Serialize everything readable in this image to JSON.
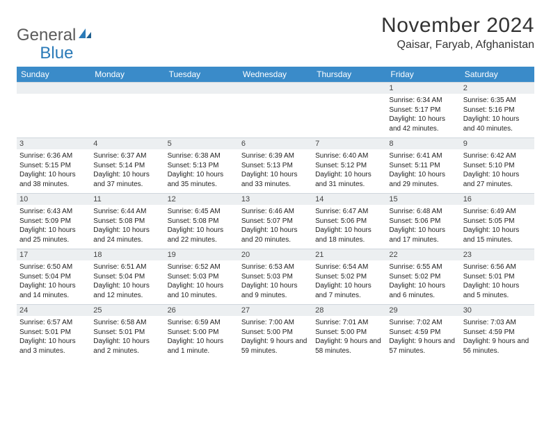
{
  "logo": {
    "word1": "General",
    "word2": "Blue"
  },
  "title": "November 2024",
  "location": "Qaisar, Faryab, Afghanistan",
  "colors": {
    "header_bg": "#3a8bc9",
    "header_text": "#ffffff",
    "daynum_bg": "#eceff1",
    "border": "#cfd6dc",
    "logo_gray": "#5a5a5a",
    "logo_blue": "#2a7ab8"
  },
  "weekdays": [
    "Sunday",
    "Monday",
    "Tuesday",
    "Wednesday",
    "Thursday",
    "Friday",
    "Saturday"
  ],
  "weeks": [
    [
      null,
      null,
      null,
      null,
      null,
      {
        "n": "1",
        "sr": "Sunrise: 6:34 AM",
        "ss": "Sunset: 5:17 PM",
        "dl": "Daylight: 10 hours and 42 minutes."
      },
      {
        "n": "2",
        "sr": "Sunrise: 6:35 AM",
        "ss": "Sunset: 5:16 PM",
        "dl": "Daylight: 10 hours and 40 minutes."
      }
    ],
    [
      {
        "n": "3",
        "sr": "Sunrise: 6:36 AM",
        "ss": "Sunset: 5:15 PM",
        "dl": "Daylight: 10 hours and 38 minutes."
      },
      {
        "n": "4",
        "sr": "Sunrise: 6:37 AM",
        "ss": "Sunset: 5:14 PM",
        "dl": "Daylight: 10 hours and 37 minutes."
      },
      {
        "n": "5",
        "sr": "Sunrise: 6:38 AM",
        "ss": "Sunset: 5:13 PM",
        "dl": "Daylight: 10 hours and 35 minutes."
      },
      {
        "n": "6",
        "sr": "Sunrise: 6:39 AM",
        "ss": "Sunset: 5:13 PM",
        "dl": "Daylight: 10 hours and 33 minutes."
      },
      {
        "n": "7",
        "sr": "Sunrise: 6:40 AM",
        "ss": "Sunset: 5:12 PM",
        "dl": "Daylight: 10 hours and 31 minutes."
      },
      {
        "n": "8",
        "sr": "Sunrise: 6:41 AM",
        "ss": "Sunset: 5:11 PM",
        "dl": "Daylight: 10 hours and 29 minutes."
      },
      {
        "n": "9",
        "sr": "Sunrise: 6:42 AM",
        "ss": "Sunset: 5:10 PM",
        "dl": "Daylight: 10 hours and 27 minutes."
      }
    ],
    [
      {
        "n": "10",
        "sr": "Sunrise: 6:43 AM",
        "ss": "Sunset: 5:09 PM",
        "dl": "Daylight: 10 hours and 25 minutes."
      },
      {
        "n": "11",
        "sr": "Sunrise: 6:44 AM",
        "ss": "Sunset: 5:08 PM",
        "dl": "Daylight: 10 hours and 24 minutes."
      },
      {
        "n": "12",
        "sr": "Sunrise: 6:45 AM",
        "ss": "Sunset: 5:08 PM",
        "dl": "Daylight: 10 hours and 22 minutes."
      },
      {
        "n": "13",
        "sr": "Sunrise: 6:46 AM",
        "ss": "Sunset: 5:07 PM",
        "dl": "Daylight: 10 hours and 20 minutes."
      },
      {
        "n": "14",
        "sr": "Sunrise: 6:47 AM",
        "ss": "Sunset: 5:06 PM",
        "dl": "Daylight: 10 hours and 18 minutes."
      },
      {
        "n": "15",
        "sr": "Sunrise: 6:48 AM",
        "ss": "Sunset: 5:06 PM",
        "dl": "Daylight: 10 hours and 17 minutes."
      },
      {
        "n": "16",
        "sr": "Sunrise: 6:49 AM",
        "ss": "Sunset: 5:05 PM",
        "dl": "Daylight: 10 hours and 15 minutes."
      }
    ],
    [
      {
        "n": "17",
        "sr": "Sunrise: 6:50 AM",
        "ss": "Sunset: 5:04 PM",
        "dl": "Daylight: 10 hours and 14 minutes."
      },
      {
        "n": "18",
        "sr": "Sunrise: 6:51 AM",
        "ss": "Sunset: 5:04 PM",
        "dl": "Daylight: 10 hours and 12 minutes."
      },
      {
        "n": "19",
        "sr": "Sunrise: 6:52 AM",
        "ss": "Sunset: 5:03 PM",
        "dl": "Daylight: 10 hours and 10 minutes."
      },
      {
        "n": "20",
        "sr": "Sunrise: 6:53 AM",
        "ss": "Sunset: 5:03 PM",
        "dl": "Daylight: 10 hours and 9 minutes."
      },
      {
        "n": "21",
        "sr": "Sunrise: 6:54 AM",
        "ss": "Sunset: 5:02 PM",
        "dl": "Daylight: 10 hours and 7 minutes."
      },
      {
        "n": "22",
        "sr": "Sunrise: 6:55 AM",
        "ss": "Sunset: 5:02 PM",
        "dl": "Daylight: 10 hours and 6 minutes."
      },
      {
        "n": "23",
        "sr": "Sunrise: 6:56 AM",
        "ss": "Sunset: 5:01 PM",
        "dl": "Daylight: 10 hours and 5 minutes."
      }
    ],
    [
      {
        "n": "24",
        "sr": "Sunrise: 6:57 AM",
        "ss": "Sunset: 5:01 PM",
        "dl": "Daylight: 10 hours and 3 minutes."
      },
      {
        "n": "25",
        "sr": "Sunrise: 6:58 AM",
        "ss": "Sunset: 5:01 PM",
        "dl": "Daylight: 10 hours and 2 minutes."
      },
      {
        "n": "26",
        "sr": "Sunrise: 6:59 AM",
        "ss": "Sunset: 5:00 PM",
        "dl": "Daylight: 10 hours and 1 minute."
      },
      {
        "n": "27",
        "sr": "Sunrise: 7:00 AM",
        "ss": "Sunset: 5:00 PM",
        "dl": "Daylight: 9 hours and 59 minutes."
      },
      {
        "n": "28",
        "sr": "Sunrise: 7:01 AM",
        "ss": "Sunset: 5:00 PM",
        "dl": "Daylight: 9 hours and 58 minutes."
      },
      {
        "n": "29",
        "sr": "Sunrise: 7:02 AM",
        "ss": "Sunset: 4:59 PM",
        "dl": "Daylight: 9 hours and 57 minutes."
      },
      {
        "n": "30",
        "sr": "Sunrise: 7:03 AM",
        "ss": "Sunset: 4:59 PM",
        "dl": "Daylight: 9 hours and 56 minutes."
      }
    ]
  ]
}
